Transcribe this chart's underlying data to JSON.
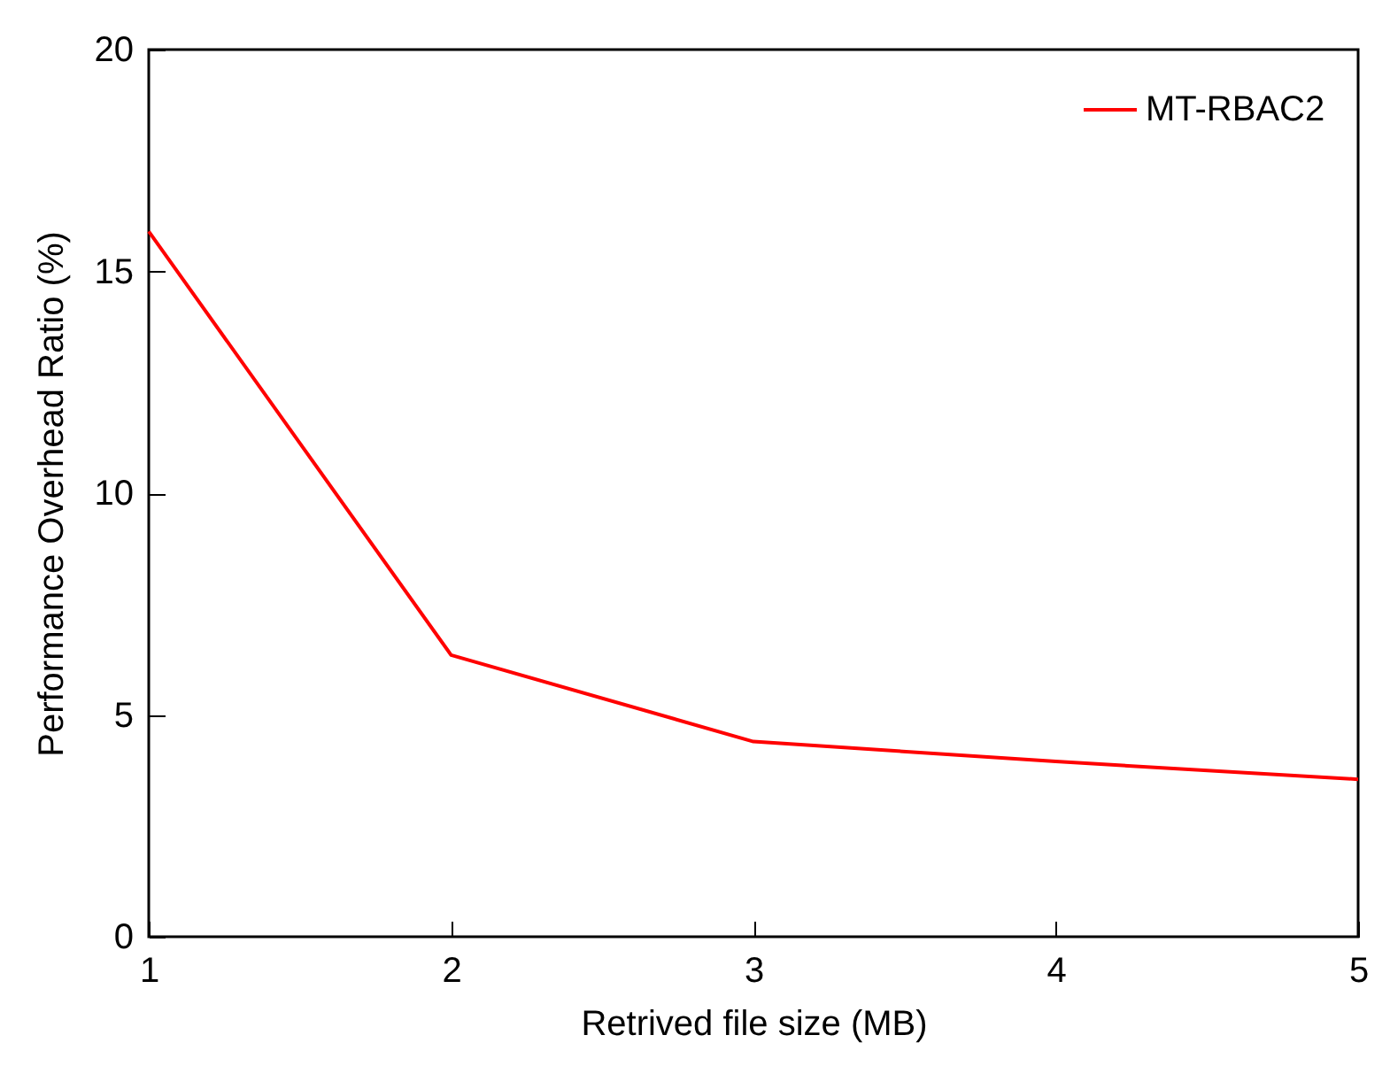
{
  "chart_data": {
    "type": "line",
    "xlabel": "Retrived file size (MB)",
    "ylabel": "Performance Overhead Ratio (%)",
    "x": [
      1,
      2,
      3,
      4,
      5
    ],
    "series": [
      {
        "name": "MT-RBAC2",
        "color": "#ff0000",
        "values": [
          15.9,
          6.35,
          4.4,
          3.95,
          3.55
        ]
      }
    ],
    "xlim": [
      1,
      5
    ],
    "xticks": [
      1,
      2,
      3,
      4,
      5
    ],
    "ylim": [
      0,
      20
    ],
    "yticks": [
      0,
      5,
      10,
      15,
      20
    ],
    "legend": "top right",
    "grid": false,
    "marker": "none",
    "line_style": "solid"
  }
}
